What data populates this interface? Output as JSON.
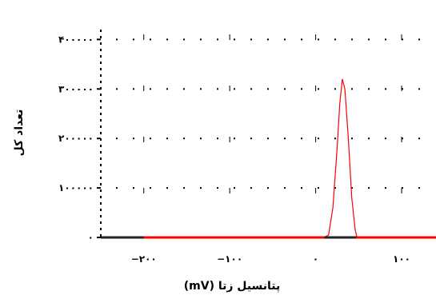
{
  "chart_data": {
    "type": "line",
    "xlabel": "پتانسیل زتا (mV)",
    "ylabel": "تعداد کل",
    "xlim": [
      -250,
      140
    ],
    "ylim": [
      0,
      420000
    ],
    "x_ticks": [
      {
        "value": -200,
        "label": "−۲۰۰"
      },
      {
        "value": -100,
        "label": "−۱۰۰"
      },
      {
        "value": 0,
        "label": "۰"
      },
      {
        "value": 100,
        "label": "۱۰۰"
      }
    ],
    "y_ticks": [
      {
        "value": 0,
        "label": "۰"
      },
      {
        "value": 100000,
        "label": "۱۰۰۰۰۰"
      },
      {
        "value": 200000,
        "label": "۲۰۰۰۰۰"
      },
      {
        "value": 300000,
        "label": "۳۰۰۰۰۰"
      },
      {
        "value": 400000,
        "label": "۴۰۰۰۰۰"
      }
    ],
    "grid": "dotted",
    "series": [
      {
        "color": "#ff0000",
        "x": [
          -250,
          10,
          15,
          20,
          25,
          28,
          31,
          34,
          38,
          42,
          46,
          48,
          50,
          140
        ],
        "y": [
          0,
          0,
          5000,
          60000,
          180000,
          270000,
          320000,
          300000,
          200000,
          80000,
          15000,
          0,
          0,
          0
        ]
      }
    ],
    "baseline_segments": [
      [
        -250,
        -200
      ],
      [
        10,
        47
      ]
    ]
  }
}
